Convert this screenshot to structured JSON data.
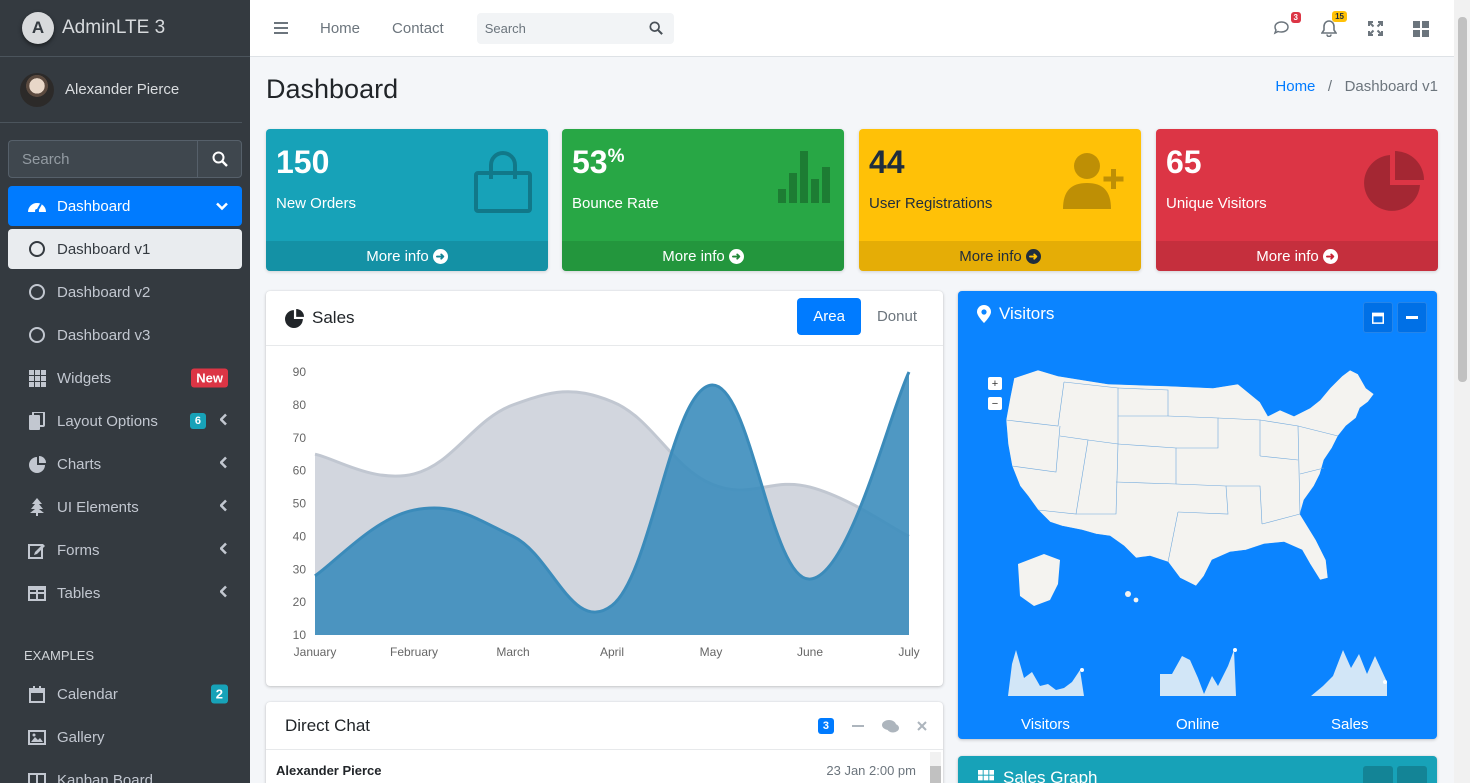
{
  "app": {
    "brand": "AdminLTE 3",
    "user": "Alexander Pierce"
  },
  "sidebar": {
    "search_placeholder": "Search",
    "items": [
      {
        "label": "Dashboard",
        "icon": "tachometer-icon"
      },
      {
        "label": "Dashboard v1",
        "icon": "circle-icon"
      },
      {
        "label": "Dashboard v2",
        "icon": "circle-icon"
      },
      {
        "label": "Dashboard v3",
        "icon": "circle-icon"
      },
      {
        "label": "Widgets",
        "icon": "grid-icon",
        "badge": "New"
      },
      {
        "label": "Layout Options",
        "icon": "copy-icon",
        "badge": "6"
      },
      {
        "label": "Charts",
        "icon": "pie-chart-icon"
      },
      {
        "label": "UI Elements",
        "icon": "tree-icon"
      },
      {
        "label": "Forms",
        "icon": "edit-icon"
      },
      {
        "label": "Tables",
        "icon": "table-icon"
      }
    ],
    "header": "EXAMPLES",
    "examples": [
      {
        "label": "Calendar",
        "icon": "calendar-icon",
        "badge": "2"
      },
      {
        "label": "Gallery",
        "icon": "image-icon"
      },
      {
        "label": "Kanban Board",
        "icon": "columns-icon"
      }
    ]
  },
  "topbar": {
    "home": "Home",
    "contact": "Contact",
    "search_placeholder": "Search",
    "messages_count": "3",
    "notifications_count": "15"
  },
  "page": {
    "title": "Dashboard",
    "breadcrumb": {
      "home": "Home",
      "current": "Dashboard v1"
    }
  },
  "boxes": [
    {
      "value": "150",
      "suffix": "",
      "label": "New Orders",
      "footer": "More info",
      "color": "#17a2b8"
    },
    {
      "value": "53",
      "suffix": "%",
      "label": "Bounce Rate",
      "footer": "More info",
      "color": "#28a745"
    },
    {
      "value": "44",
      "suffix": "",
      "label": "User Registrations",
      "footer": "More info",
      "color": "#ffc107"
    },
    {
      "value": "65",
      "suffix": "",
      "label": "Unique Visitors",
      "footer": "More info",
      "color": "#dc3545"
    }
  ],
  "sales": {
    "title": "Sales",
    "tab_area": "Area",
    "tab_donut": "Donut"
  },
  "chart_data": {
    "type": "area",
    "categories": [
      "January",
      "February",
      "March",
      "April",
      "May",
      "June",
      "July"
    ],
    "ylim": [
      10,
      90
    ],
    "yticks": [
      10,
      20,
      30,
      40,
      50,
      60,
      70,
      80,
      90
    ],
    "series": [
      {
        "values": [
          65,
          59,
          80,
          81,
          56,
          55,
          40
        ],
        "color": "#d2d6de"
      },
      {
        "values": [
          28,
          48,
          40,
          19,
          86,
          27,
          90
        ],
        "color": "#3c8dbc"
      }
    ]
  },
  "visitors": {
    "title": "Visitors",
    "sparks": [
      "Visitors",
      "Online",
      "Sales"
    ]
  },
  "chat": {
    "title": "Direct Chat",
    "badge": "3",
    "author": "Alexander Pierce",
    "time": "23 Jan 2:00 pm"
  },
  "sales_graph": {
    "title": "Sales Graph"
  }
}
